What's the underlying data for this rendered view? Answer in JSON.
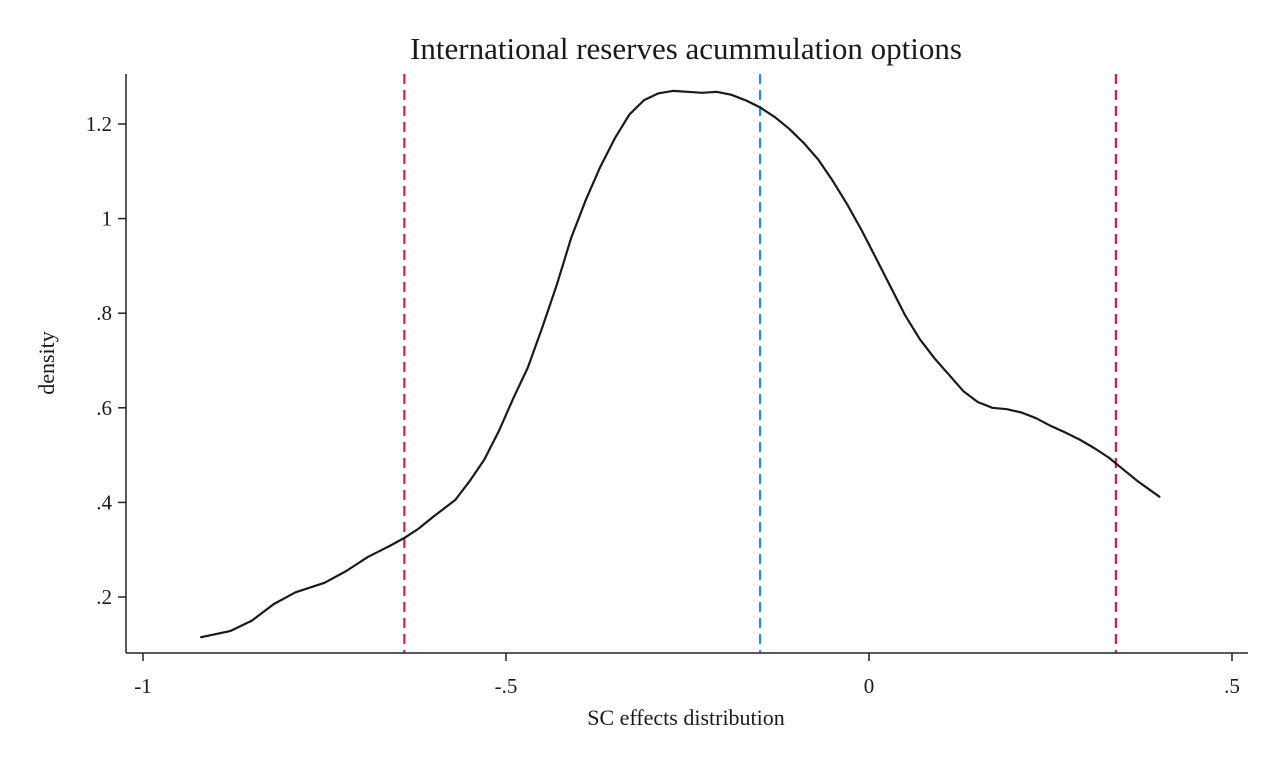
{
  "chart_data": {
    "type": "line",
    "title": "International reserves acummulation options",
    "xlabel": "SC effects distribution",
    "ylabel": "density",
    "xlim": [
      -1,
      0.5
    ],
    "ylim": [
      0.08,
      1.32
    ],
    "x_ticks": [
      {
        "value": -1,
        "label": "-1"
      },
      {
        "value": -0.5,
        "label": "-.5"
      },
      {
        "value": 0,
        "label": "0"
      },
      {
        "value": 0.5,
        "label": ".5"
      }
    ],
    "y_ticks": [
      {
        "value": 0.2,
        "label": ".2"
      },
      {
        "value": 0.4,
        "label": ".4"
      },
      {
        "value": 0.6,
        "label": ".6"
      },
      {
        "value": 0.8,
        "label": ".8"
      },
      {
        "value": 1.0,
        "label": "1"
      },
      {
        "value": 1.2,
        "label": "1.2"
      }
    ],
    "grid": false,
    "series": [
      {
        "color": "#1a1a1a",
        "x": [
          -0.92,
          -0.88,
          -0.85,
          -0.82,
          -0.79,
          -0.75,
          -0.72,
          -0.69,
          -0.66,
          -0.64,
          -0.62,
          -0.6,
          -0.57,
          -0.55,
          -0.53,
          -0.51,
          -0.49,
          -0.47,
          -0.45,
          -0.43,
          -0.41,
          -0.39,
          -0.37,
          -0.35,
          -0.33,
          -0.31,
          -0.29,
          -0.27,
          -0.25,
          -0.23,
          -0.21,
          -0.19,
          -0.17,
          -0.15,
          -0.13,
          -0.11,
          -0.09,
          -0.07,
          -0.05,
          -0.03,
          -0.01,
          0.01,
          0.03,
          0.05,
          0.07,
          0.09,
          0.11,
          0.13,
          0.15,
          0.17,
          0.19,
          0.21,
          0.23,
          0.25,
          0.27,
          0.29,
          0.31,
          0.33,
          0.35,
          0.37,
          0.4
        ],
        "y": [
          0.115,
          0.128,
          0.15,
          0.185,
          0.21,
          0.23,
          0.255,
          0.285,
          0.308,
          0.325,
          0.345,
          0.37,
          0.405,
          0.445,
          0.49,
          0.55,
          0.62,
          0.685,
          0.77,
          0.86,
          0.96,
          1.04,
          1.11,
          1.17,
          1.22,
          1.25,
          1.265,
          1.27,
          1.268,
          1.266,
          1.268,
          1.262,
          1.25,
          1.235,
          1.215,
          1.19,
          1.16,
          1.125,
          1.08,
          1.03,
          0.975,
          0.915,
          0.855,
          0.795,
          0.745,
          0.705,
          0.67,
          0.635,
          0.612,
          0.6,
          0.597,
          0.59,
          0.578,
          0.562,
          0.548,
          0.533,
          0.515,
          0.495,
          0.47,
          0.445,
          0.412
        ]
      }
    ],
    "vlines": [
      {
        "x": -0.64,
        "color": "#cc1f5a",
        "style": "dashed"
      },
      {
        "x": -0.15,
        "color": "#2f8ae6",
        "style": "dashed"
      },
      {
        "x": 0.34,
        "color": "#cc1f5a",
        "style": "dashed"
      }
    ]
  }
}
